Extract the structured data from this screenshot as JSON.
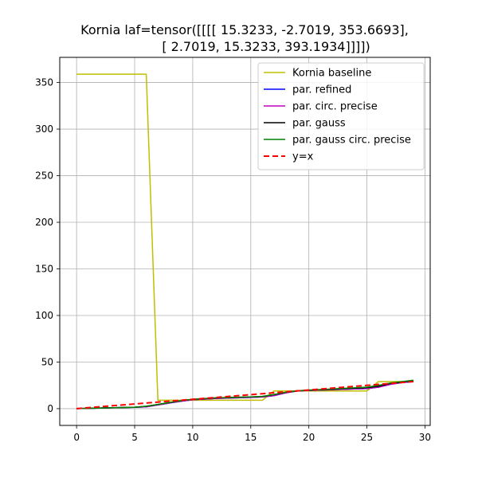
{
  "chart_data": {
    "type": "line",
    "title": [
      "Kornia laf=tensor([[[[ 15.3233,  -2.7019, 353.6693],",
      "[  2.7019,  15.3233, 393.1934]]]])"
    ],
    "xlabel": "",
    "ylabel": "",
    "xlim": [
      -1.45,
      30.45
    ],
    "ylim": [
      -18,
      377
    ],
    "xticks": [
      0,
      5,
      10,
      15,
      20,
      25,
      30
    ],
    "yticks": [
      0,
      50,
      100,
      150,
      200,
      250,
      300,
      350
    ],
    "grid": true,
    "legend_position": "top-right",
    "series": [
      {
        "name": "Kornia baseline",
        "color": "#bfbf00",
        "style": "solid",
        "points": [
          [
            0,
            359
          ],
          [
            6,
            359
          ],
          [
            7,
            9
          ],
          [
            8,
            9
          ],
          [
            16,
            9
          ],
          [
            17,
            19
          ],
          [
            25,
            19
          ],
          [
            26,
            29
          ],
          [
            29,
            29
          ]
        ]
      },
      {
        "name": "par. refined",
        "color": "#0000ff",
        "style": "solid",
        "points": [
          [
            0,
            0
          ],
          [
            5,
            1.5
          ],
          [
            6,
            2
          ],
          [
            7,
            4
          ],
          [
            8,
            6
          ],
          [
            9,
            8
          ],
          [
            10,
            9.5
          ],
          [
            12,
            11
          ],
          [
            15,
            12
          ],
          [
            16,
            12.5
          ],
          [
            17,
            14
          ],
          [
            18,
            17
          ],
          [
            19,
            19
          ],
          [
            20,
            19.5
          ],
          [
            21,
            20
          ],
          [
            25,
            21.5
          ],
          [
            26,
            23
          ],
          [
            27,
            26
          ],
          [
            28,
            28
          ],
          [
            29,
            29
          ]
        ]
      },
      {
        "name": "par. circ. precise",
        "color": "#bf00bf",
        "style": "solid",
        "points": [
          [
            0,
            0
          ],
          [
            5,
            1.5
          ],
          [
            6,
            2
          ],
          [
            7,
            4
          ],
          [
            8,
            6
          ],
          [
            9,
            8
          ],
          [
            10,
            9.5
          ],
          [
            12,
            11
          ],
          [
            15,
            12
          ],
          [
            16,
            12.5
          ],
          [
            17,
            14
          ],
          [
            18,
            17
          ],
          [
            19,
            19
          ],
          [
            20,
            19.5
          ],
          [
            21,
            20
          ],
          [
            25,
            21.5
          ],
          [
            26,
            23
          ],
          [
            27,
            26
          ],
          [
            28,
            28
          ],
          [
            29,
            29
          ]
        ]
      },
      {
        "name": "par. gauss",
        "color": "#000000",
        "style": "solid",
        "points": [
          [
            0,
            0
          ],
          [
            5,
            1.5
          ],
          [
            6,
            2.5
          ],
          [
            7,
            4.5
          ],
          [
            8,
            6.5
          ],
          [
            9,
            8.5
          ],
          [
            10,
            10
          ],
          [
            12,
            11.5
          ],
          [
            15,
            12.5
          ],
          [
            16,
            13
          ],
          [
            17,
            15
          ],
          [
            18,
            17.5
          ],
          [
            19,
            19
          ],
          [
            20,
            19.8
          ],
          [
            21,
            20.3
          ],
          [
            25,
            22.5
          ],
          [
            26,
            24
          ],
          [
            27,
            27
          ],
          [
            28,
            28.5
          ],
          [
            29,
            30
          ]
        ]
      },
      {
        "name": "par. gauss circ. precise",
        "color": "#008000",
        "style": "solid",
        "points": [
          [
            0,
            0
          ],
          [
            5,
            1.6
          ],
          [
            6,
            2.6
          ],
          [
            7,
            4.6
          ],
          [
            8,
            6.6
          ],
          [
            9,
            8.6
          ],
          [
            10,
            10
          ],
          [
            12,
            11.6
          ],
          [
            15,
            12.6
          ],
          [
            16,
            13.2
          ],
          [
            17,
            15.2
          ],
          [
            18,
            17.6
          ],
          [
            19,
            19.2
          ],
          [
            20,
            20
          ],
          [
            21,
            20.5
          ],
          [
            25,
            23
          ],
          [
            26,
            25
          ],
          [
            27,
            27.5
          ],
          [
            28,
            29
          ],
          [
            29,
            30.5
          ]
        ]
      },
      {
        "name": "y=x",
        "color": "#ff0000",
        "style": "dashed",
        "points": [
          [
            0,
            0
          ],
          [
            29,
            29
          ]
        ]
      }
    ]
  }
}
